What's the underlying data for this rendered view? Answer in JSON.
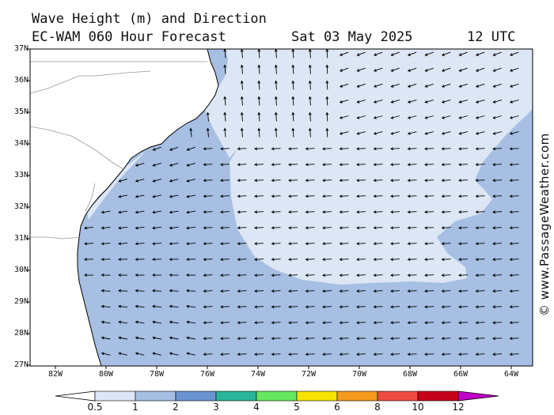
{
  "header": {
    "title_line1": "Wave Height (m) and Direction",
    "title_line2": "EC-WAM 060 Hour Forecast",
    "date": "Sat 03 May 2025",
    "time": "12 UTC"
  },
  "watermark": "© www.PassageWeather.com",
  "map": {
    "lat_labels": [
      "37N",
      "36N",
      "35N",
      "34N",
      "33N",
      "32N",
      "31N",
      "30N",
      "29N",
      "28N",
      "27N"
    ],
    "lon_labels": [
      "82W",
      "80W",
      "78W",
      "76W",
      "74W",
      "72W",
      "70W",
      "68W",
      "66W",
      "64W"
    ],
    "colors": {
      "land": "#ffffff",
      "band_0_5_1": "#dce6f4",
      "band_1_2": "#a6bfe2",
      "land_border": "#000000",
      "state_border": "#999999"
    }
  },
  "colorbar": {
    "labels": [
      "0.5",
      "1",
      "2",
      "3",
      "4",
      "5",
      "6",
      "8",
      "10",
      "12"
    ],
    "colors": [
      "#dce6f4",
      "#a6bfe2",
      "#6b93cf",
      "#2ab59a",
      "#66e65f",
      "#f5e400",
      "#f59a1c",
      "#ee4b41",
      "#c4001a",
      "#c000c6"
    ]
  }
}
